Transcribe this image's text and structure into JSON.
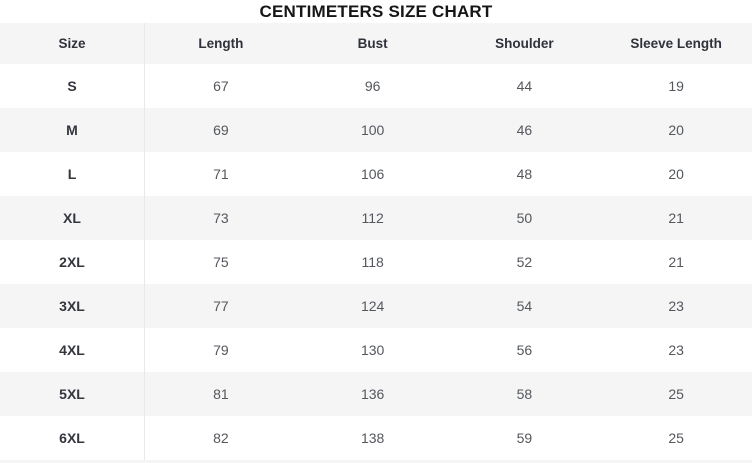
{
  "title": "CENTIMETERS SIZE CHART",
  "columns": [
    "Size",
    "Length",
    "Bust",
    "Shoulder",
    "Sleeve Length"
  ],
  "rows": [
    {
      "size": "S",
      "length": "67",
      "bust": "96",
      "shoulder": "44",
      "sleeve": "19"
    },
    {
      "size": "M",
      "length": "69",
      "bust": "100",
      "shoulder": "46",
      "sleeve": "20"
    },
    {
      "size": "L",
      "length": "71",
      "bust": "106",
      "shoulder": "48",
      "sleeve": "20"
    },
    {
      "size": "XL",
      "length": "73",
      "bust": "112",
      "shoulder": "50",
      "sleeve": "21"
    },
    {
      "size": "2XL",
      "length": "75",
      "bust": "118",
      "shoulder": "52",
      "sleeve": "21"
    },
    {
      "size": "3XL",
      "length": "77",
      "bust": "124",
      "shoulder": "54",
      "sleeve": "23"
    },
    {
      "size": "4XL",
      "length": "79",
      "bust": "130",
      "shoulder": "56",
      "sleeve": "23"
    },
    {
      "size": "5XL",
      "length": "81",
      "bust": "136",
      "shoulder": "58",
      "sleeve": "25"
    },
    {
      "size": "6XL",
      "length": "82",
      "bust": "138",
      "shoulder": "59",
      "sleeve": "25"
    }
  ],
  "chart_data": {
    "type": "table",
    "title": "CENTIMETERS SIZE CHART",
    "columns": [
      "Size",
      "Length",
      "Bust",
      "Shoulder",
      "Sleeve Length"
    ],
    "rows": [
      [
        "S",
        67,
        96,
        44,
        19
      ],
      [
        "M",
        69,
        100,
        46,
        20
      ],
      [
        "L",
        71,
        106,
        48,
        20
      ],
      [
        "XL",
        73,
        112,
        50,
        21
      ],
      [
        "2XL",
        75,
        118,
        52,
        21
      ],
      [
        "3XL",
        77,
        124,
        54,
        23
      ],
      [
        "4XL",
        79,
        130,
        56,
        23
      ],
      [
        "5XL",
        81,
        136,
        58,
        25
      ],
      [
        "6XL",
        82,
        138,
        59,
        25
      ]
    ],
    "layout": {
      "header_background": "#f5f5f6",
      "stripe_background": "#f5f5f6",
      "striped_rows": "even (M, XL, 3XL, 5XL)",
      "divider_after_first_column": true
    }
  },
  "colors": {
    "title_text": "#161616",
    "header_text": "#2f323a",
    "size_text": "#33363c",
    "value_text": "#54575d",
    "stripe": "#f5f5f6",
    "divider": "#e9e9ea"
  }
}
